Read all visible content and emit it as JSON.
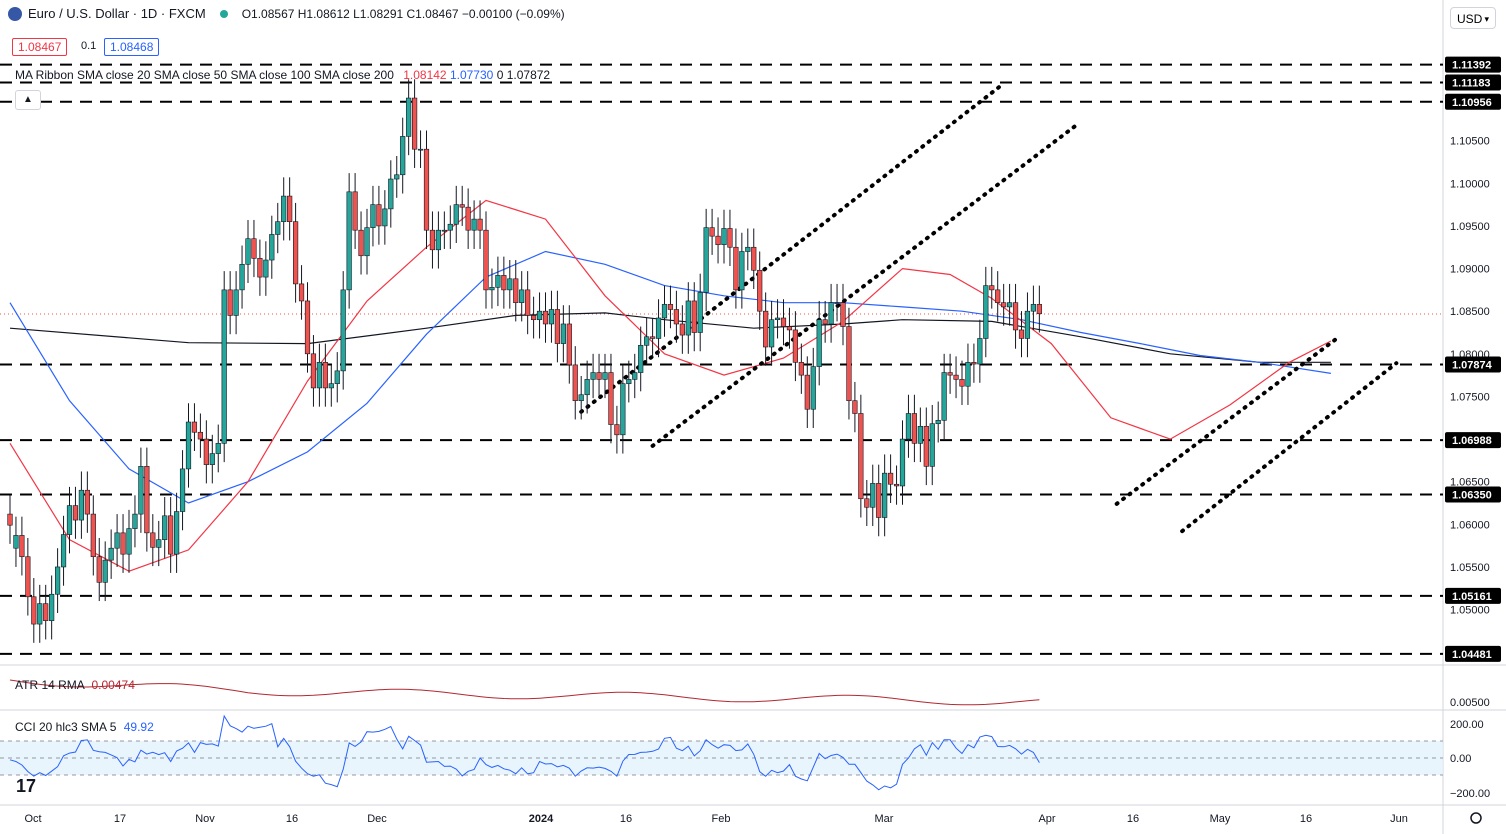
{
  "header": {
    "symbol": "Euro / U.S. Dollar · 1D · FXCM",
    "ohlc": "O1.08567  H1.08612  L1.08291  C1.08467  −0.00100 (−0.09%)",
    "bid": "1.08467",
    "spread": "0.1",
    "ask": "1.08468",
    "currency": "USD"
  },
  "indicators": {
    "ma_label": "MA Ribbon SMA close 20 SMA close 50 SMA close 100 SMA close 200",
    "ma_values": [
      "1.08142",
      "1.07730",
      "0",
      "1.07872"
    ],
    "atr_label": "ATR 14 RMA",
    "atr_value": "0.00474",
    "cci_label": "CCI 20 hlc3 SMA 5",
    "cci_value": "49.92"
  },
  "colors": {
    "up": "#26a69a",
    "down": "#ef5350",
    "sma20": "#f23645",
    "sma50": "#2962ff",
    "sma200": "#131722",
    "atr": "#b22833",
    "cci": "#2962ff"
  },
  "chart_data": {
    "type": "candlestick",
    "price_ticks": [
      "1.10500",
      "1.10000",
      "1.09500",
      "1.09000",
      "1.08500",
      "1.08000",
      "1.07500",
      "1.07000",
      "1.06500",
      "1.06000",
      "1.05500",
      "1.05000"
    ],
    "price_range": [
      1.0435,
      1.1215
    ],
    "levels": [
      "1.11392",
      "1.11183",
      "1.10956",
      "1.07874",
      "1.06988",
      "1.06350",
      "1.05161",
      "1.04481"
    ],
    "last_price": 1.08467,
    "atr_ticks": [
      "0.00500"
    ],
    "cci_ticks": [
      "200.00",
      "0.00",
      "−200.00"
    ],
    "x_labels": [
      "Oct",
      "17",
      "Nov",
      "16",
      "Dec",
      "2024",
      "16",
      "Feb",
      "Mar",
      "Apr",
      "16",
      "May",
      "16",
      "Jun"
    ],
    "candles": [
      [
        1.0612,
        1.0599
      ],
      [
        1.0572,
        1.0587
      ],
      [
        1.0587,
        1.0562
      ],
      [
        1.0562,
        1.0515
      ],
      [
        1.0515,
        1.0483
      ],
      [
        1.0483,
        1.0507
      ],
      [
        1.0507,
        1.0487
      ],
      [
        1.0487,
        1.0518
      ],
      [
        1.0518,
        1.055
      ],
      [
        1.055,
        1.0588
      ],
      [
        1.0588,
        1.0622
      ],
      [
        1.0622,
        1.0605
      ],
      [
        1.0605,
        1.064
      ],
      [
        1.064,
        1.0612
      ],
      [
        1.0612,
        1.0562
      ],
      [
        1.0562,
        1.0532
      ],
      [
        1.0532,
        1.0558
      ],
      [
        1.0558,
        1.0572
      ],
      [
        1.0572,
        1.059
      ],
      [
        1.059,
        1.0565
      ],
      [
        1.0565,
        1.0595
      ],
      [
        1.0595,
        1.0612
      ],
      [
        1.0612,
        1.0668
      ],
      [
        1.0668,
        1.059
      ],
      [
        1.059,
        1.0573
      ],
      [
        1.0573,
        1.0582
      ],
      [
        1.0582,
        1.061
      ],
      [
        1.061,
        1.0565
      ],
      [
        1.0565,
        1.0615
      ],
      [
        1.0615,
        1.0665
      ],
      [
        1.0665,
        1.072
      ],
      [
        1.072,
        1.0708
      ],
      [
        1.0708,
        1.07
      ],
      [
        1.07,
        1.067
      ],
      [
        1.067,
        1.0683
      ],
      [
        1.0683,
        1.0695
      ],
      [
        1.0695,
        1.0875
      ],
      [
        1.0875,
        1.0845
      ],
      [
        1.0845,
        1.0875
      ],
      [
        1.0875,
        1.0905
      ],
      [
        1.0905,
        1.0935
      ],
      [
        1.0935,
        1.0912
      ],
      [
        1.0912,
        1.089
      ],
      [
        1.089,
        1.091
      ],
      [
        1.091,
        1.094
      ],
      [
        1.094,
        1.0955
      ],
      [
        1.0955,
        1.0985
      ],
      [
        1.0985,
        1.0955
      ],
      [
        1.0955,
        1.0882
      ],
      [
        1.0882,
        1.0862
      ],
      [
        1.0862,
        1.08
      ],
      [
        1.08,
        1.076
      ],
      [
        1.076,
        1.079
      ],
      [
        1.079,
        1.076
      ],
      [
        1.076,
        1.0765
      ],
      [
        1.0765,
        1.078
      ],
      [
        1.078,
        1.0875
      ],
      [
        1.0875,
        1.099
      ],
      [
        1.099,
        1.0945
      ],
      [
        1.0945,
        1.0915
      ],
      [
        1.0915,
        1.0948
      ],
      [
        1.0948,
        1.0975
      ],
      [
        1.0975,
        1.095
      ],
      [
        1.095,
        1.097
      ],
      [
        1.097,
        1.1005
      ],
      [
        1.1005,
        1.101
      ],
      [
        1.101,
        1.1055
      ],
      [
        1.1055,
        1.11
      ],
      [
        1.11,
        1.104
      ],
      [
        1.104,
        1.104
      ],
      [
        1.104,
        1.0945
      ],
      [
        1.0945,
        1.0922
      ],
      [
        1.0922,
        1.0945
      ],
      [
        1.0945,
        1.0945
      ],
      [
        1.0945,
        1.0952
      ],
      [
        1.0952,
        1.0975
      ],
      [
        1.0975,
        1.0972
      ],
      [
        1.0972,
        1.0945
      ],
      [
        1.0945,
        1.0958
      ],
      [
        1.0958,
        1.0945
      ],
      [
        1.0945,
        1.0875
      ],
      [
        1.0875,
        1.0878
      ],
      [
        1.0878,
        1.0892
      ],
      [
        1.0892,
        1.0875
      ],
      [
        1.0875,
        1.0888
      ],
      [
        1.0888,
        1.086
      ],
      [
        1.086,
        1.0875
      ],
      [
        1.0875,
        1.0845
      ],
      [
        1.0845,
        1.084
      ],
      [
        1.084,
        1.085
      ],
      [
        1.085,
        1.0835
      ],
      [
        1.0835,
        1.0852
      ],
      [
        1.0852,
        1.0812
      ],
      [
        1.0812,
        1.0835
      ],
      [
        1.0835,
        1.0787
      ],
      [
        1.0787,
        1.0745
      ],
      [
        1.0745,
        1.0752
      ],
      [
        1.0752,
        1.077
      ],
      [
        1.077,
        1.0778
      ],
      [
        1.0778,
        1.077
      ],
      [
        1.077,
        1.0778
      ],
      [
        1.0778,
        1.0717
      ],
      [
        1.0717,
        1.0705
      ],
      [
        1.0705,
        1.0765
      ],
      [
        1.0765,
        1.077
      ],
      [
        1.077,
        1.0778
      ],
      [
        1.0778,
        1.081
      ],
      [
        1.081,
        1.082
      ],
      [
        1.082,
        1.0818
      ],
      [
        1.0818,
        1.0842
      ],
      [
        1.0842,
        1.0858
      ],
      [
        1.0858,
        1.0852
      ],
      [
        1.0852,
        1.0835
      ],
      [
        1.0835,
        1.0822
      ],
      [
        1.0822,
        1.0862
      ],
      [
        1.0862,
        1.0825
      ],
      [
        1.0825,
        1.0872
      ],
      [
        1.0872,
        1.0948
      ],
      [
        1.0948,
        1.0938
      ],
      [
        1.0938,
        1.0928
      ],
      [
        1.0928,
        1.0947
      ],
      [
        1.0947,
        1.0925
      ],
      [
        1.0925,
        1.0875
      ],
      [
        1.0875,
        1.092
      ],
      [
        1.092,
        1.0925
      ],
      [
        1.0925,
        1.0898
      ],
      [
        1.0898,
        1.085
      ],
      [
        1.085,
        1.0808
      ],
      [
        1.0808,
        1.084
      ],
      [
        1.084,
        1.0842
      ],
      [
        1.0842,
        1.0832
      ],
      [
        1.0832,
        1.0828
      ],
      [
        1.0828,
        1.079
      ],
      [
        1.079,
        1.0775
      ],
      [
        1.0775,
        1.0735
      ],
      [
        1.0735,
        1.0785
      ],
      [
        1.0785,
        1.084
      ],
      [
        1.084,
        1.0835
      ],
      [
        1.0835,
        1.086
      ],
      [
        1.086,
        1.086
      ],
      [
        1.086,
        1.0832
      ],
      [
        1.0832,
        1.0745
      ],
      [
        1.0745,
        1.073
      ],
      [
        1.073,
        1.063
      ],
      [
        1.063,
        1.062
      ],
      [
        1.062,
        1.0648
      ],
      [
        1.0648,
        1.0608
      ],
      [
        1.0608,
        1.066
      ],
      [
        1.066,
        1.0647
      ],
      [
        1.0647,
        1.0645
      ],
      [
        1.0645,
        1.07
      ],
      [
        1.07,
        1.073
      ],
      [
        1.073,
        1.0695
      ],
      [
        1.0695,
        1.0715
      ],
      [
        1.0715,
        1.0668
      ],
      [
        1.0668,
        1.0718
      ],
      [
        1.0718,
        1.0722
      ],
      [
        1.0722,
        1.0778
      ],
      [
        1.0778,
        1.0775
      ],
      [
        1.0775,
        1.077
      ],
      [
        1.077,
        1.0762
      ],
      [
        1.0762,
        1.079
      ],
      [
        1.079,
        1.0788
      ],
      [
        1.0788,
        1.0818
      ],
      [
        1.0818,
        1.088
      ],
      [
        1.088,
        1.0875
      ],
      [
        1.0875,
        1.086
      ],
      [
        1.086,
        1.0855
      ],
      [
        1.0855,
        1.086
      ],
      [
        1.086,
        1.0828
      ],
      [
        1.0828,
        1.0818
      ],
      [
        1.0818,
        1.085
      ],
      [
        1.085,
        1.0858
      ],
      [
        1.0858,
        1.0847
      ]
    ],
    "sma20": [
      [
        0,
        1.0695
      ],
      [
        10,
        1.0582
      ],
      [
        20,
        1.0545
      ],
      [
        30,
        1.057
      ],
      [
        40,
        1.065
      ],
      [
        50,
        1.0768
      ],
      [
        60,
        1.0862
      ],
      [
        70,
        1.0925
      ],
      [
        80,
        1.098
      ],
      [
        90,
        1.0958
      ],
      [
        100,
        1.0868
      ],
      [
        110,
        1.08
      ],
      [
        120,
        1.0775
      ],
      [
        130,
        1.0795
      ],
      [
        140,
        1.0838
      ],
      [
        150,
        1.09
      ],
      [
        158,
        1.0893
      ],
      [
        165,
        1.0865
      ],
      [
        175,
        1.0812
      ],
      [
        185,
        1.0725
      ],
      [
        195,
        1.07
      ],
      [
        205,
        1.074
      ],
      [
        215,
        1.079
      ],
      [
        222,
        1.0815
      ]
    ],
    "sma50": [
      [
        0,
        1.086
      ],
      [
        10,
        1.0745
      ],
      [
        20,
        1.0665
      ],
      [
        30,
        1.0625
      ],
      [
        40,
        1.065
      ],
      [
        50,
        1.0685
      ],
      [
        60,
        1.0742
      ],
      [
        70,
        1.0823
      ],
      [
        80,
        1.089
      ],
      [
        90,
        1.092
      ],
      [
        100,
        1.0905
      ],
      [
        110,
        1.088
      ],
      [
        120,
        1.0868
      ],
      [
        130,
        1.086
      ],
      [
        140,
        1.086
      ],
      [
        150,
        1.0855
      ],
      [
        160,
        1.085
      ],
      [
        170,
        1.084
      ],
      [
        180,
        1.0825
      ],
      [
        190,
        1.0812
      ],
      [
        200,
        1.0798
      ],
      [
        210,
        1.079
      ],
      [
        222,
        1.0777
      ]
    ],
    "sma200": [
      [
        0,
        1.083
      ],
      [
        30,
        1.0813
      ],
      [
        50,
        1.0812
      ],
      [
        70,
        1.083
      ],
      [
        85,
        1.0845
      ],
      [
        100,
        1.0848
      ],
      [
        110,
        1.084
      ],
      [
        125,
        1.083
      ],
      [
        140,
        1.0835
      ],
      [
        150,
        1.084
      ],
      [
        165,
        1.0838
      ],
      [
        180,
        1.082
      ],
      [
        195,
        1.08
      ],
      [
        210,
        1.079
      ],
      [
        222,
        1.079
      ]
    ],
    "trendline_channels": [
      [
        [
          96,
          1.0732
        ],
        [
          167,
          1.1117
        ]
      ],
      [
        [
          108,
          1.0692
        ],
        [
          179,
          1.1067
        ]
      ],
      [
        [
          186,
          1.0624
        ],
        [
          223,
          1.0818
        ]
      ],
      [
        [
          197,
          1.0592
        ],
        [
          233,
          1.0789
        ]
      ]
    ]
  }
}
